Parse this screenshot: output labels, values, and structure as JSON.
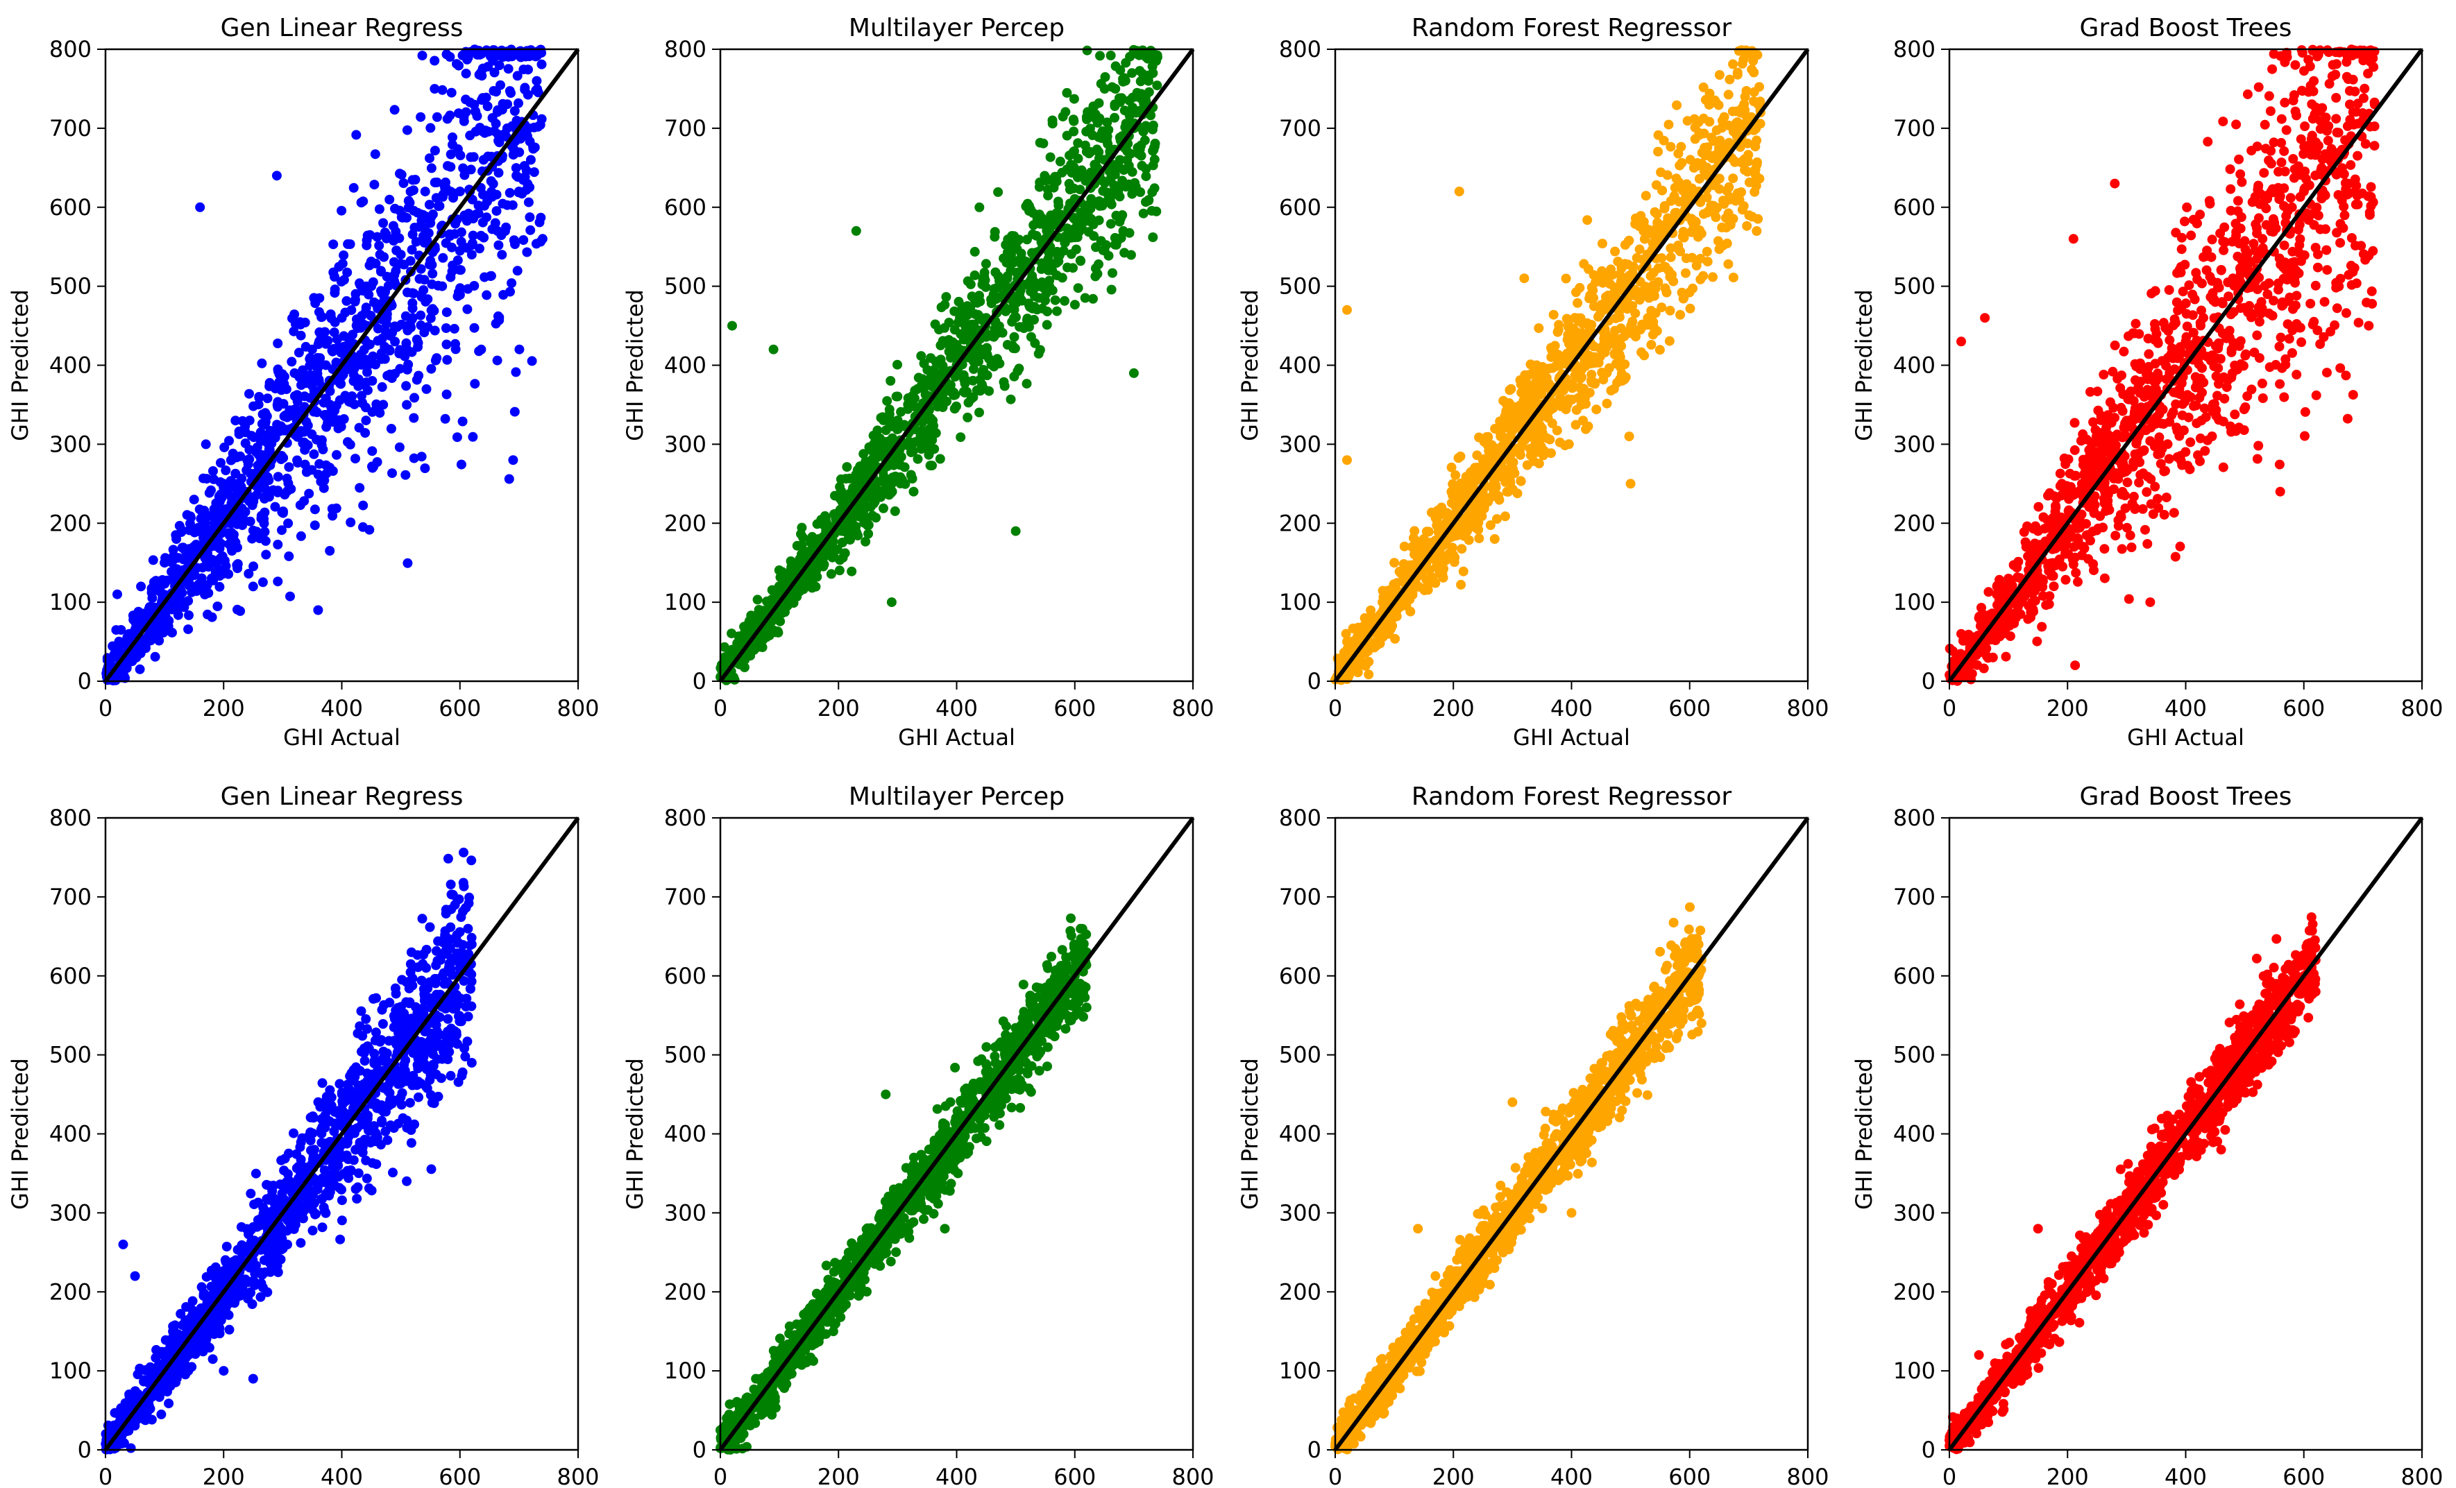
{
  "figure": {
    "title": ""
  },
  "chart_data": [
    {
      "type": "scatter",
      "title": "Gen Linear Regress",
      "xlabel": "GHI Actual",
      "ylabel": "GHI Predicted",
      "xlim": [
        0,
        800
      ],
      "ylim": [
        0,
        800
      ],
      "xticks": [
        0,
        200,
        400,
        600,
        800
      ],
      "yticks": [
        0,
        100,
        200,
        300,
        400,
        500,
        600,
        700,
        800
      ],
      "color": "#0000ff",
      "reference_line": {
        "from": [
          0,
          0
        ],
        "to": [
          800,
          800
        ],
        "color": "#000000"
      },
      "grid": false,
      "spread": "wide",
      "points": [
        [
          20,
          110
        ],
        [
          40,
          60
        ],
        [
          60,
          120
        ],
        [
          80,
          90
        ],
        [
          100,
          150
        ],
        [
          120,
          180
        ],
        [
          140,
          160
        ],
        [
          150,
          230
        ],
        [
          170,
          300
        ],
        [
          200,
          250
        ],
        [
          220,
          330
        ],
        [
          240,
          280
        ],
        [
          260,
          360
        ],
        [
          280,
          240
        ],
        [
          300,
          320
        ],
        [
          320,
          390
        ],
        [
          340,
          300
        ],
        [
          350,
          420
        ],
        [
          380,
          350
        ],
        [
          400,
          460
        ],
        [
          420,
          380
        ],
        [
          450,
          500
        ],
        [
          480,
          420
        ],
        [
          500,
          540
        ],
        [
          520,
          460
        ],
        [
          550,
          580
        ],
        [
          570,
          500
        ],
        [
          600,
          620
        ],
        [
          620,
          540
        ],
        [
          640,
          660
        ],
        [
          660,
          580
        ],
        [
          680,
          700
        ],
        [
          700,
          620
        ],
        [
          720,
          660
        ],
        [
          730,
          760
        ],
        [
          740,
          560
        ],
        [
          160,
          600
        ],
        [
          290,
          640
        ],
        [
          250,
          120
        ],
        [
          360,
          90
        ],
        [
          470,
          580
        ],
        [
          690,
          280
        ]
      ]
    },
    {
      "type": "scatter",
      "title": "Multilayer Percep",
      "xlabel": "GHI Actual",
      "ylabel": "GHI Predicted",
      "xlim": [
        0,
        800
      ],
      "ylim": [
        0,
        800
      ],
      "xticks": [
        0,
        200,
        400,
        600,
        800
      ],
      "yticks": [
        0,
        100,
        200,
        300,
        400,
        500,
        600,
        700,
        800
      ],
      "color": "#008000",
      "reference_line": {
        "from": [
          0,
          0
        ],
        "to": [
          800,
          800
        ],
        "color": "#000000"
      },
      "grid": false,
      "spread": "medium",
      "points": [
        [
          20,
          40
        ],
        [
          50,
          70
        ],
        [
          80,
          90
        ],
        [
          100,
          120
        ],
        [
          130,
          150
        ],
        [
          150,
          160
        ],
        [
          180,
          200
        ],
        [
          200,
          210
        ],
        [
          230,
          250
        ],
        [
          250,
          240
        ],
        [
          280,
          290
        ],
        [
          300,
          300
        ],
        [
          330,
          330
        ],
        [
          350,
          360
        ],
        [
          380,
          390
        ],
        [
          400,
          400
        ],
        [
          430,
          440
        ],
        [
          450,
          460
        ],
        [
          480,
          490
        ],
        [
          500,
          500
        ],
        [
          530,
          540
        ],
        [
          550,
          560
        ],
        [
          580,
          590
        ],
        [
          600,
          610
        ],
        [
          630,
          640
        ],
        [
          650,
          660
        ],
        [
          680,
          690
        ],
        [
          700,
          700
        ],
        [
          720,
          740
        ],
        [
          740,
          790
        ],
        [
          20,
          450
        ],
        [
          90,
          420
        ],
        [
          230,
          570
        ],
        [
          500,
          190
        ],
        [
          290,
          100
        ],
        [
          700,
          390
        ]
      ]
    },
    {
      "type": "scatter",
      "title": "Random Forest Regressor",
      "xlabel": "GHI Actual",
      "ylabel": "GHI Predicted",
      "xlim": [
        0,
        800
      ],
      "ylim": [
        0,
        800
      ],
      "xticks": [
        0,
        200,
        400,
        600,
        800
      ],
      "yticks": [
        0,
        100,
        200,
        300,
        400,
        500,
        600,
        700,
        800
      ],
      "color": "#ffa500",
      "reference_line": {
        "from": [
          0,
          0
        ],
        "to": [
          800,
          800
        ],
        "color": "#000000"
      },
      "grid": false,
      "spread": "medium",
      "points": [
        [
          20,
          50
        ],
        [
          50,
          80
        ],
        [
          80,
          100
        ],
        [
          100,
          150
        ],
        [
          130,
          170
        ],
        [
          150,
          180
        ],
        [
          180,
          220
        ],
        [
          200,
          240
        ],
        [
          230,
          260
        ],
        [
          250,
          280
        ],
        [
          280,
          310
        ],
        [
          300,
          330
        ],
        [
          330,
          350
        ],
        [
          350,
          380
        ],
        [
          380,
          400
        ],
        [
          400,
          420
        ],
        [
          430,
          450
        ],
        [
          450,
          470
        ],
        [
          480,
          500
        ],
        [
          500,
          510
        ],
        [
          530,
          540
        ],
        [
          550,
          560
        ],
        [
          580,
          590
        ],
        [
          600,
          610
        ],
        [
          630,
          640
        ],
        [
          650,
          660
        ],
        [
          680,
          690
        ],
        [
          700,
          700
        ],
        [
          720,
          720
        ],
        [
          20,
          470
        ],
        [
          20,
          280
        ],
        [
          210,
          620
        ],
        [
          320,
          510
        ],
        [
          500,
          250
        ],
        [
          270,
          180
        ]
      ]
    },
    {
      "type": "scatter",
      "title": "Grad Boost Trees",
      "xlabel": "GHI Actual",
      "ylabel": "GHI Predicted",
      "xlim": [
        0,
        800
      ],
      "ylim": [
        0,
        800
      ],
      "xticks": [
        0,
        200,
        400,
        600,
        800
      ],
      "yticks": [
        0,
        100,
        200,
        300,
        400,
        500,
        600,
        700,
        800
      ],
      "color": "#ff0000",
      "reference_line": {
        "from": [
          0,
          0
        ],
        "to": [
          800,
          800
        ],
        "color": "#000000"
      },
      "grid": false,
      "spread": "wide",
      "points": [
        [
          20,
          60
        ],
        [
          50,
          80
        ],
        [
          80,
          110
        ],
        [
          100,
          130
        ],
        [
          130,
          170
        ],
        [
          150,
          190
        ],
        [
          180,
          220
        ],
        [
          200,
          240
        ],
        [
          230,
          270
        ],
        [
          250,
          290
        ],
        [
          280,
          310
        ],
        [
          300,
          330
        ],
        [
          330,
          360
        ],
        [
          350,
          380
        ],
        [
          380,
          410
        ],
        [
          400,
          430
        ],
        [
          430,
          460
        ],
        [
          450,
          480
        ],
        [
          480,
          510
        ],
        [
          500,
          530
        ],
        [
          530,
          560
        ],
        [
          550,
          580
        ],
        [
          580,
          600
        ],
        [
          600,
          620
        ],
        [
          630,
          650
        ],
        [
          650,
          670
        ],
        [
          680,
          690
        ],
        [
          700,
          710
        ],
        [
          720,
          730
        ],
        [
          20,
          430
        ],
        [
          60,
          460
        ],
        [
          210,
          560
        ],
        [
          280,
          630
        ],
        [
          340,
          100
        ],
        [
          560,
          240
        ]
      ]
    },
    {
      "type": "scatter",
      "title": "Gen Linear Regress",
      "xlabel": "GHI Actual",
      "ylabel": "GHI Predicted",
      "xlim": [
        0,
        800
      ],
      "ylim": [
        0,
        800
      ],
      "xticks": [
        0,
        200,
        400,
        600,
        800
      ],
      "yticks": [
        0,
        100,
        200,
        300,
        400,
        500,
        600,
        700,
        800
      ],
      "color": "#0000ff",
      "reference_line": {
        "from": [
          0,
          0
        ],
        "to": [
          800,
          800
        ],
        "color": "#000000"
      },
      "grid": false,
      "spread": "medium",
      "points": [
        [
          10,
          20
        ],
        [
          30,
          50
        ],
        [
          50,
          60
        ],
        [
          80,
          90
        ],
        [
          100,
          110
        ],
        [
          130,
          140
        ],
        [
          150,
          160
        ],
        [
          180,
          190
        ],
        [
          200,
          210
        ],
        [
          230,
          240
        ],
        [
          250,
          260
        ],
        [
          280,
          290
        ],
        [
          300,
          310
        ],
        [
          330,
          340
        ],
        [
          350,
          360
        ],
        [
          380,
          390
        ],
        [
          400,
          410
        ],
        [
          430,
          440
        ],
        [
          450,
          470
        ],
        [
          480,
          490
        ],
        [
          500,
          510
        ],
        [
          530,
          540
        ],
        [
          550,
          570
        ],
        [
          580,
          590
        ],
        [
          600,
          610
        ],
        [
          620,
          640
        ],
        [
          30,
          260
        ],
        [
          50,
          220
        ],
        [
          200,
          100
        ],
        [
          250,
          90
        ],
        [
          510,
          340
        ],
        [
          620,
          490
        ]
      ]
    },
    {
      "type": "scatter",
      "title": "Multilayer Percep",
      "xlabel": "GHI Actual",
      "ylabel": "GHI Predicted",
      "xlim": [
        0,
        800
      ],
      "ylim": [
        0,
        800
      ],
      "xticks": [
        0,
        200,
        400,
        600,
        800
      ],
      "yticks": [
        0,
        100,
        200,
        300,
        400,
        500,
        600,
        700,
        800
      ],
      "color": "#008000",
      "reference_line": {
        "from": [
          0,
          0
        ],
        "to": [
          800,
          800
        ],
        "color": "#000000"
      },
      "grid": false,
      "spread": "narrow",
      "points": [
        [
          10,
          10
        ],
        [
          30,
          30
        ],
        [
          60,
          60
        ],
        [
          90,
          90
        ],
        [
          120,
          120
        ],
        [
          150,
          150
        ],
        [
          180,
          180
        ],
        [
          210,
          210
        ],
        [
          240,
          240
        ],
        [
          270,
          270
        ],
        [
          300,
          300
        ],
        [
          330,
          330
        ],
        [
          360,
          360
        ],
        [
          390,
          390
        ],
        [
          420,
          420
        ],
        [
          450,
          450
        ],
        [
          480,
          480
        ],
        [
          510,
          510
        ],
        [
          540,
          540
        ],
        [
          570,
          570
        ],
        [
          600,
          600
        ],
        [
          620,
          630
        ],
        [
          280,
          450
        ],
        [
          380,
          280
        ],
        [
          620,
          560
        ]
      ]
    },
    {
      "type": "scatter",
      "title": "Random Forest Regressor",
      "xlabel": "GHI Actual",
      "ylabel": "GHI Predicted",
      "xlim": [
        0,
        800
      ],
      "ylim": [
        0,
        800
      ],
      "xticks": [
        0,
        200,
        400,
        600,
        800
      ],
      "yticks": [
        0,
        100,
        200,
        300,
        400,
        500,
        600,
        700,
        800
      ],
      "color": "#ffa500",
      "reference_line": {
        "from": [
          0,
          0
        ],
        "to": [
          800,
          800
        ],
        "color": "#000000"
      },
      "grid": false,
      "spread": "narrow",
      "points": [
        [
          10,
          10
        ],
        [
          30,
          40
        ],
        [
          60,
          60
        ],
        [
          90,
          100
        ],
        [
          120,
          120
        ],
        [
          150,
          150
        ],
        [
          180,
          180
        ],
        [
          210,
          210
        ],
        [
          240,
          240
        ],
        [
          270,
          270
        ],
        [
          300,
          310
        ],
        [
          330,
          330
        ],
        [
          360,
          360
        ],
        [
          390,
          390
        ],
        [
          420,
          420
        ],
        [
          450,
          450
        ],
        [
          480,
          480
        ],
        [
          510,
          510
        ],
        [
          540,
          540
        ],
        [
          570,
          570
        ],
        [
          600,
          600
        ],
        [
          620,
          620
        ],
        [
          140,
          280
        ],
        [
          300,
          440
        ],
        [
          400,
          300
        ],
        [
          620,
          540
        ]
      ]
    },
    {
      "type": "scatter",
      "title": "Grad Boost Trees",
      "xlabel": "GHI Actual",
      "ylabel": "GHI Predicted",
      "xlim": [
        0,
        800
      ],
      "ylim": [
        0,
        800
      ],
      "xticks": [
        0,
        200,
        400,
        600,
        800
      ],
      "yticks": [
        0,
        100,
        200,
        300,
        400,
        500,
        600,
        700,
        800
      ],
      "color": "#ff0000",
      "reference_line": {
        "from": [
          0,
          0
        ],
        "to": [
          800,
          800
        ],
        "color": "#000000"
      },
      "grid": false,
      "spread": "narrow",
      "points": [
        [
          10,
          10
        ],
        [
          30,
          30
        ],
        [
          60,
          70
        ],
        [
          90,
          90
        ],
        [
          120,
          120
        ],
        [
          150,
          160
        ],
        [
          180,
          180
        ],
        [
          210,
          210
        ],
        [
          240,
          240
        ],
        [
          270,
          270
        ],
        [
          300,
          300
        ],
        [
          330,
          340
        ],
        [
          360,
          360
        ],
        [
          390,
          390
        ],
        [
          420,
          420
        ],
        [
          450,
          450
        ],
        [
          480,
          480
        ],
        [
          510,
          520
        ],
        [
          540,
          540
        ],
        [
          570,
          570
        ],
        [
          600,
          600
        ],
        [
          620,
          620
        ],
        [
          50,
          120
        ],
        [
          150,
          280
        ],
        [
          460,
          380
        ],
        [
          620,
          580
        ]
      ]
    }
  ]
}
